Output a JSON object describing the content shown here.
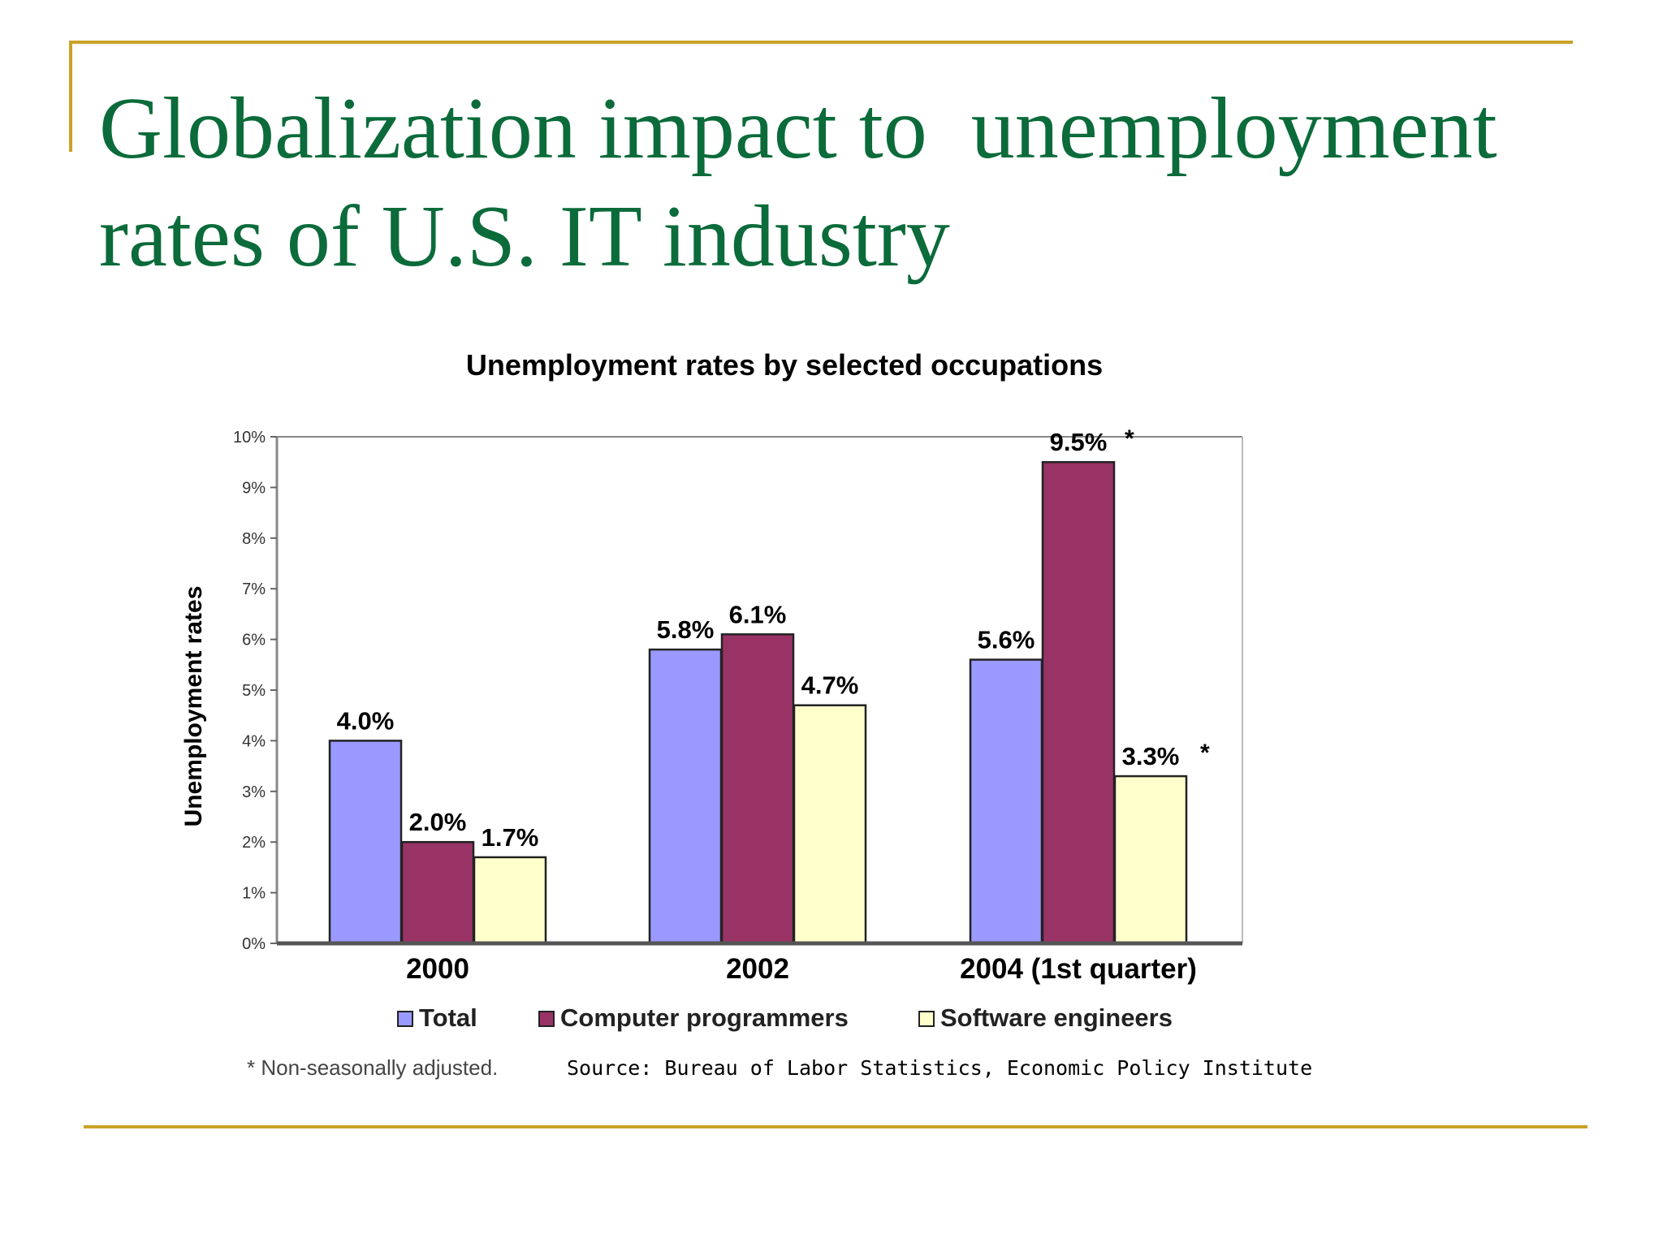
{
  "slide": {
    "title_line1": "Globalization impact to  unemployment",
    "title_line2": "rates of U.S. IT industry",
    "accent_color": "#c9a227",
    "title_color": "#0b6b3a"
  },
  "chart_data": {
    "type": "bar",
    "title": "Unemployment rates by selected occupations",
    "xlabel": "",
    "ylabel": "Unemployment rates",
    "categories": [
      "2000",
      "2002",
      "2004 (1st quarter)"
    ],
    "y_ticks": [
      "0%",
      "1%",
      "2%",
      "3%",
      "4%",
      "5%",
      "6%",
      "7%",
      "8%",
      "9%",
      "10%"
    ],
    "ylim": [
      0,
      10
    ],
    "series": [
      {
        "name": "Total",
        "values": [
          4.0,
          5.8,
          5.6
        ],
        "labels": [
          "4.0%",
          "5.8%",
          "5.6%"
        ],
        "color": "#9999ff"
      },
      {
        "name": "Computer programmers",
        "values": [
          2.0,
          6.1,
          9.5
        ],
        "labels": [
          "2.0%",
          "6.1%",
          "9.5%"
        ],
        "color": "#993366"
      },
      {
        "name": "Software engineers",
        "values": [
          1.7,
          4.7,
          3.3
        ],
        "labels": [
          "1.7%",
          "4.7%",
          "3.3%"
        ],
        "color": "#ffffcc"
      }
    ],
    "annotations": {
      "asterisk": "*"
    },
    "footnote": "* Non-seasonally adjusted.",
    "source": "Source: Bureau of Labor Statistics, Economic Policy Institute",
    "legend_position": "bottom",
    "grid": false
  }
}
